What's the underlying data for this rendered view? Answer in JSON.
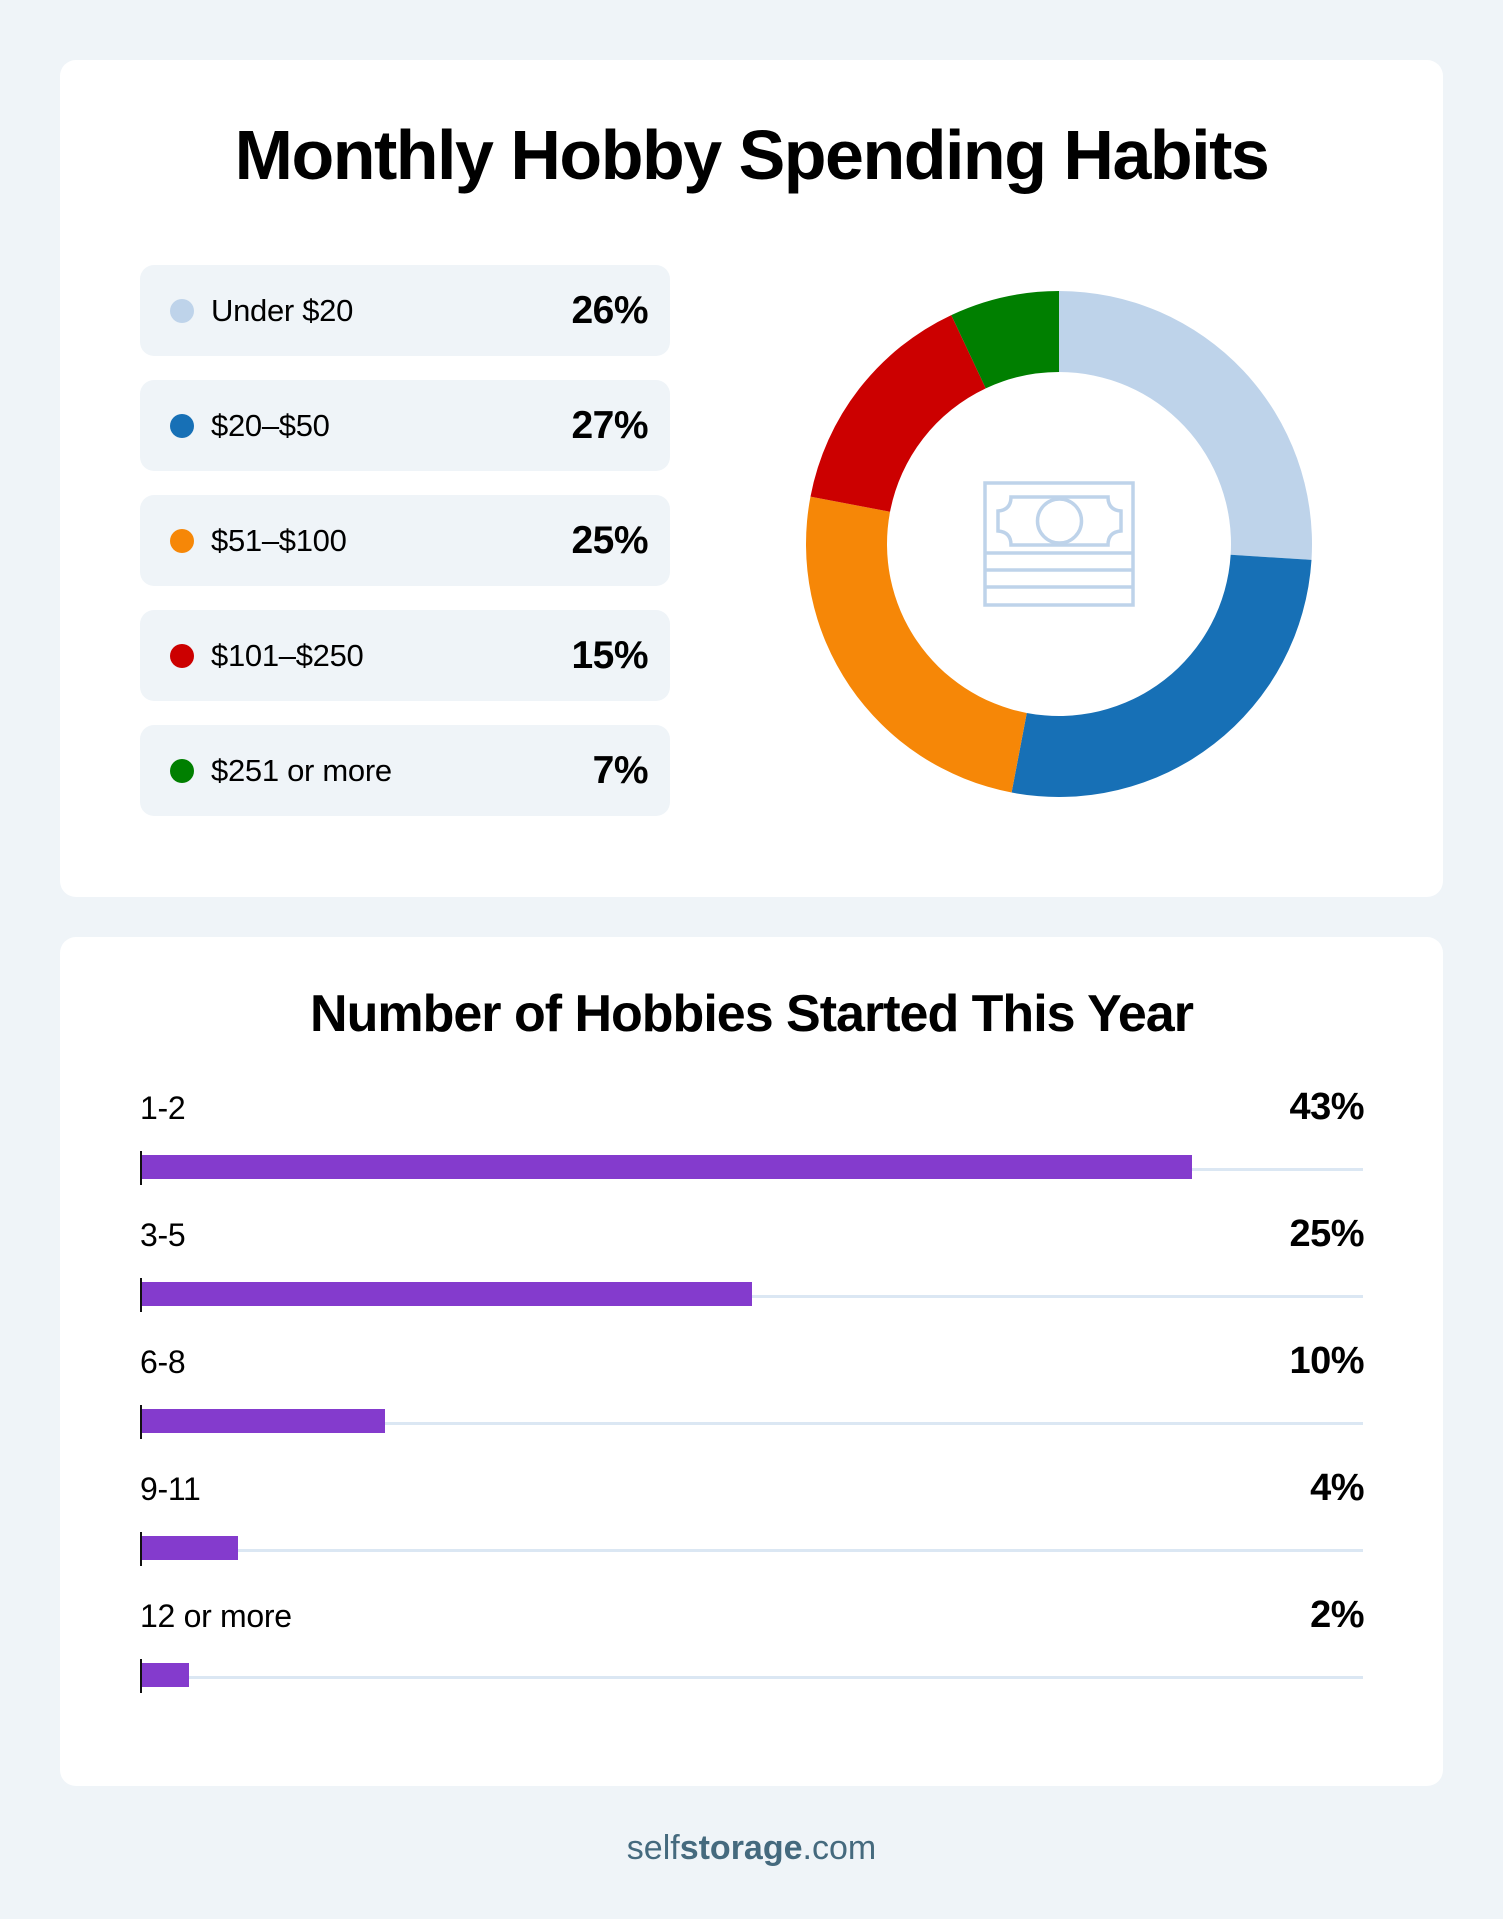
{
  "spending": {
    "title": "Monthly Hobby Spending Habits",
    "center_icon": "money-stack-icon",
    "legend": [
      {
        "label": "Under $20",
        "value": "26%",
        "color": "#bed3ea"
      },
      {
        "label": "$20–$50",
        "value": "27%",
        "color": "#1770b6"
      },
      {
        "label": "$51–$100",
        "value": "25%",
        "color": "#f68707"
      },
      {
        "label": "$101–$250",
        "value": "15%",
        "color": "#cc0000"
      },
      {
        "label": "$251 or more",
        "value": "7%",
        "color": "#007f00"
      }
    ]
  },
  "hobbies": {
    "title": "Number of Hobbies Started This Year",
    "bar_color": "#843bcd",
    "track_color": "#dbe7f3",
    "rows": [
      {
        "label": "1-2",
        "value": "43%"
      },
      {
        "label": "3-5",
        "value": "25%"
      },
      {
        "label": "6-8",
        "value": "10%"
      },
      {
        "label": "9-11",
        "value": "4%"
      },
      {
        "label": "12 or more",
        "value": "2%"
      }
    ]
  },
  "footer": {
    "brand_prefix": "self",
    "brand_bold": "storage",
    "brand_suffix": ".com"
  },
  "chart_data": [
    {
      "type": "pie",
      "variant": "donut",
      "title": "Monthly Hobby Spending Habits",
      "categories": [
        "Under $20",
        "$20–$50",
        "$51–$100",
        "$101–$250",
        "$251 or more"
      ],
      "values": [
        26,
        27,
        25,
        15,
        7
      ],
      "unit": "%",
      "colors": [
        "#bed3ea",
        "#1770b6",
        "#f68707",
        "#cc0000",
        "#007f00"
      ],
      "start_angle": "12 o'clock",
      "direction": "clockwise",
      "legend_position": "left"
    },
    {
      "type": "bar",
      "orientation": "horizontal",
      "title": "Number of Hobbies Started This Year",
      "categories": [
        "1-2",
        "3-5",
        "6-8",
        "9-11",
        "12 or more"
      ],
      "values": [
        43,
        25,
        10,
        4,
        2
      ],
      "unit": "%",
      "xlim": [
        0,
        50
      ],
      "color": "#843bcd",
      "grid": false
    }
  ]
}
